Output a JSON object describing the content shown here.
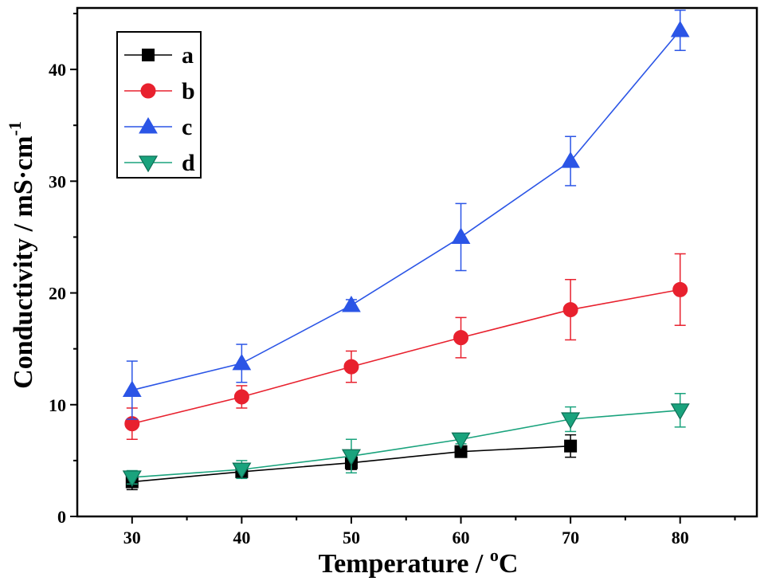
{
  "chart_data": {
    "type": "line",
    "xlabel": "Temperature / °C",
    "ylabel": "Conductivity / mS·cm-1",
    "xlabel_parts": {
      "main": "Temperature / ",
      "sup": "o",
      "unit": "C"
    },
    "ylabel_parts": {
      "main": "Conductivity / mS·cm",
      "sup": "-1"
    },
    "xlim": [
      25,
      87
    ],
    "ylim": [
      0,
      45.5
    ],
    "x_ticks": [
      30,
      40,
      50,
      60,
      70,
      80
    ],
    "y_ticks": [
      0,
      10,
      20,
      30,
      40
    ],
    "legend_position": "top-left",
    "grid": false,
    "series": [
      {
        "name": "a",
        "color": "#000000",
        "marker": "square",
        "x": [
          30,
          40,
          50,
          60,
          70
        ],
        "y": [
          3.1,
          4.0,
          4.8,
          5.8,
          6.3
        ],
        "err": [
          0.7,
          0.4,
          0.6,
          0.3,
          1.0
        ]
      },
      {
        "name": "b",
        "color": "#e8212e",
        "marker": "circle",
        "x": [
          30,
          40,
          50,
          60,
          70,
          80
        ],
        "y": [
          8.3,
          10.7,
          13.4,
          16.0,
          18.5,
          20.3
        ],
        "err": [
          1.4,
          1.0,
          1.4,
          1.8,
          2.7,
          3.2
        ]
      },
      {
        "name": "c",
        "color": "#2b55e6",
        "marker": "triangle-up",
        "x": [
          30,
          40,
          50,
          60,
          70,
          80
        ],
        "y": [
          11.3,
          13.7,
          18.9,
          25.0,
          31.8,
          43.5
        ],
        "err": [
          2.6,
          1.7,
          0.5,
          3.0,
          2.2,
          1.8
        ]
      },
      {
        "name": "d",
        "color": "#1aa37d",
        "marker": "triangle-down",
        "x": [
          30,
          40,
          50,
          60,
          70,
          80
        ],
        "y": [
          3.5,
          4.2,
          5.4,
          6.9,
          8.7,
          9.5
        ],
        "err": [
          0.6,
          0.8,
          1.5,
          0.4,
          1.1,
          1.5
        ]
      }
    ]
  }
}
